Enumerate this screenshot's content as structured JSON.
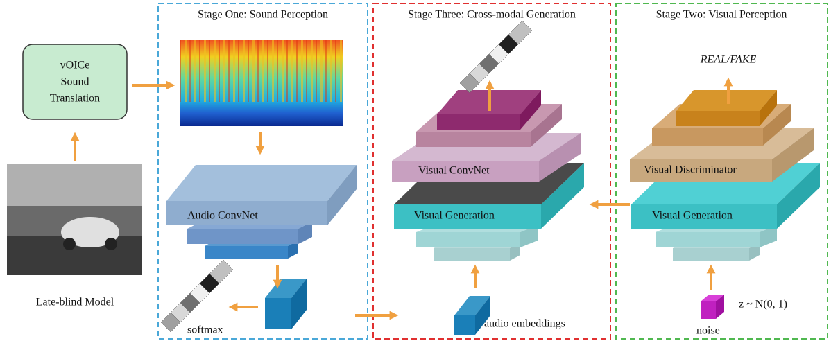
{
  "left": {
    "translation_box": [
      "vOICe",
      "Sound",
      "Translation"
    ],
    "caption": "Late-blind Model"
  },
  "stages": [
    {
      "title": "Stage One: Sound Perception",
      "network": "Audio ConvNet",
      "output": "softmax"
    },
    {
      "title": "Stage Three: Cross-modal Generation",
      "networks": [
        "Visual ConvNet",
        "Visual Generation"
      ],
      "input": "audio embeddings"
    },
    {
      "title": "Stage Two: Visual Perception",
      "networks": [
        "Visual Discriminator",
        "Visual Generation"
      ],
      "output": "REAL/FAKE",
      "input": "noise",
      "input_formula": "z ~ N(0, 1)"
    }
  ]
}
